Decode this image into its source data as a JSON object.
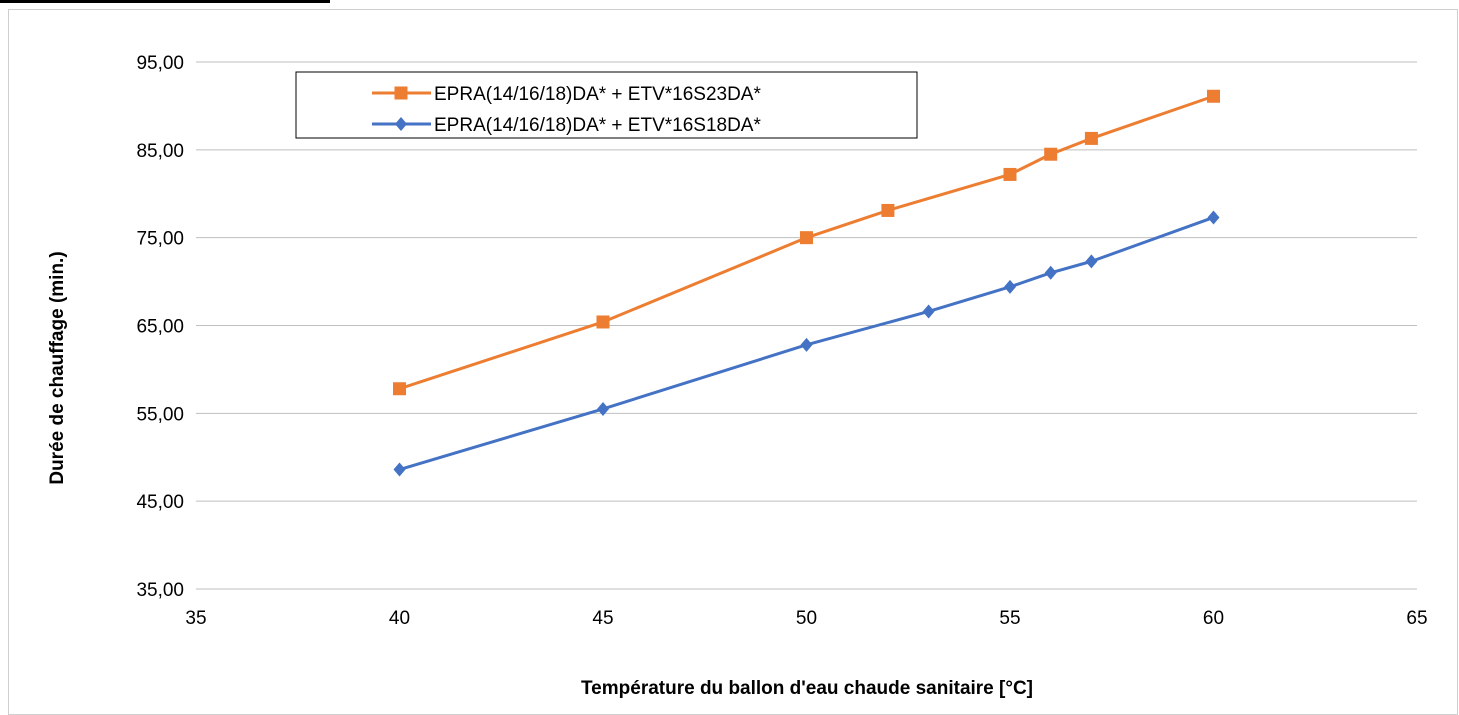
{
  "chart_data": {
    "type": "line",
    "xlabel": "Température du ballon d'eau chaude sanitaire [°C]",
    "ylabel": "Durée de chauffage (min.)",
    "xlim": [
      35,
      65
    ],
    "ylim": [
      35,
      95
    ],
    "x_ticks": [
      "35",
      "40",
      "45",
      "50",
      "55",
      "60",
      "65"
    ],
    "y_ticks": [
      "35,00",
      "45,00",
      "55,00",
      "65,00",
      "75,00",
      "85,00",
      "95,00"
    ],
    "grid": "horizontal",
    "legend_position": "top-left",
    "series": [
      {
        "name": "EPRA(14/16/18)DA* + ETV*16S23DA*",
        "color": "#ed7d31",
        "marker": "square",
        "points": [
          [
            40,
            57.8
          ],
          [
            45,
            65.4
          ],
          [
            50,
            75.0
          ],
          [
            52,
            78.1
          ],
          [
            55,
            82.2
          ],
          [
            56,
            84.5
          ],
          [
            57,
            86.3
          ],
          [
            60,
            91.1
          ]
        ]
      },
      {
        "name": "EPRA(14/16/18)DA* + ETV*16S18DA*",
        "color": "#4472c4",
        "marker": "diamond",
        "points": [
          [
            40,
            48.6
          ],
          [
            45,
            55.5
          ],
          [
            50,
            62.8
          ],
          [
            53,
            66.6
          ],
          [
            55,
            69.4
          ],
          [
            56,
            71.0
          ],
          [
            57,
            72.3
          ],
          [
            60,
            77.3
          ]
        ]
      }
    ]
  }
}
